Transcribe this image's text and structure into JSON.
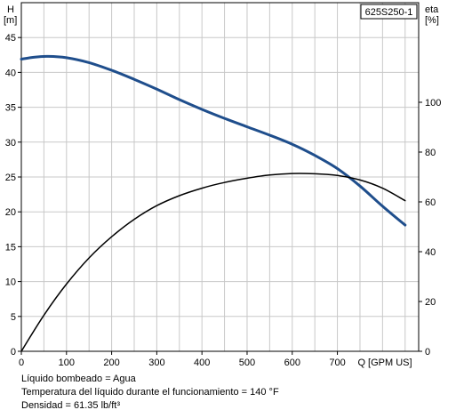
{
  "chart_data": {
    "type": "line",
    "model_label": "625S250-1",
    "left_axis": {
      "unit_label": "H",
      "unit": "[m]",
      "range": [
        0,
        50
      ],
      "ticks": [
        0,
        5,
        10,
        15,
        20,
        25,
        30,
        35,
        40,
        45
      ]
    },
    "right_axis": {
      "unit_label": "eta",
      "unit": "[%]",
      "range": [
        0,
        140
      ],
      "ticks": [
        0,
        20,
        40,
        60,
        80,
        100
      ]
    },
    "x_axis": {
      "label": "Q [GPM US]",
      "range": [
        0,
        880
      ],
      "ticks": [
        0,
        100,
        200,
        300,
        400,
        500,
        600,
        700
      ]
    },
    "grid": true,
    "series": [
      {
        "axis": "left",
        "color": "#1f4e8c",
        "x": [
          0,
          30,
          60,
          100,
          150,
          200,
          250,
          300,
          350,
          400,
          450,
          500,
          550,
          600,
          650,
          700,
          750,
          800,
          850
        ],
        "values": [
          41.9,
          42.2,
          42.3,
          42.1,
          41.4,
          40.3,
          39.0,
          37.6,
          36.1,
          34.7,
          33.4,
          32.2,
          31.0,
          29.7,
          28.1,
          26.2,
          23.7,
          20.8,
          18.1
        ]
      },
      {
        "axis": "right",
        "color": "#000000",
        "x": [
          0,
          50,
          100,
          150,
          200,
          250,
          300,
          350,
          400,
          450,
          500,
          550,
          600,
          650,
          700,
          750,
          800,
          850
        ],
        "values": [
          0,
          14.5,
          27,
          37.5,
          46,
          53,
          58.5,
          62.5,
          65.5,
          67.8,
          69.5,
          70.8,
          71.4,
          71.3,
          70.6,
          68.8,
          65.5,
          60.5
        ]
      }
    ]
  },
  "notes": {
    "line1": "Líquido bombeado = Agua",
    "line2": "Temperatura del líquido durante el funcionamiento = 140 °F",
    "line3": "Densidad = 61.35 lb/ft³"
  }
}
